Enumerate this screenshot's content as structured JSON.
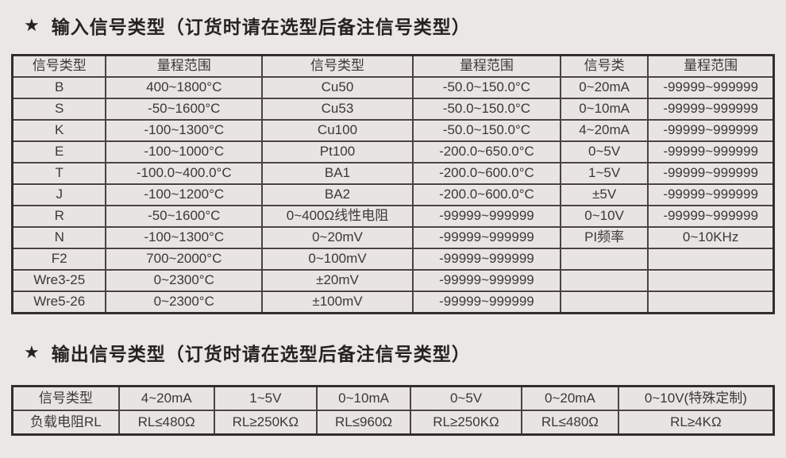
{
  "page": {
    "background_color": "#eae7e6",
    "cell_background_color": "#e7e4e3",
    "border_color": "#332d2d",
    "text_color": "#3d3737"
  },
  "section_input": {
    "star": "★",
    "title": "输入信号类型（订货时请在选型后备注信号类型）",
    "table": {
      "headers": [
        "信号类型",
        "量程范围",
        "信号类型",
        "量程范围",
        "信号类",
        "量程范围"
      ],
      "rows": [
        [
          "B",
          "400~1800°C",
          "Cu50",
          "-50.0~150.0°C",
          "0~20mA",
          "-99999~999999"
        ],
        [
          "S",
          "-50~1600°C",
          "Cu53",
          "-50.0~150.0°C",
          "0~10mA",
          "-99999~999999"
        ],
        [
          "K",
          "-100~1300°C",
          "Cu100",
          "-50.0~150.0°C",
          "4~20mA",
          "-99999~999999"
        ],
        [
          "E",
          "-100~1000°C",
          "Pt100",
          "-200.0~650.0°C",
          "0~5V",
          "-99999~999999"
        ],
        [
          "T",
          "-100.0~400.0°C",
          "BA1",
          "-200.0~600.0°C",
          "1~5V",
          "-99999~999999"
        ],
        [
          "J",
          "-100~1200°C",
          "BA2",
          "-200.0~600.0°C",
          "±5V",
          "-99999~999999"
        ],
        [
          "R",
          "-50~1600°C",
          "0~400Ω线性电阻",
          "-99999~999999",
          "0~10V",
          "-99999~999999"
        ],
        [
          "N",
          "-100~1300°C",
          "0~20mV",
          "-99999~999999",
          "PI频率",
          "0~10KHz"
        ],
        [
          "F2",
          "700~2000°C",
          "0~100mV",
          "-99999~999999",
          "",
          ""
        ],
        [
          "Wre3-25",
          "0~2300°C",
          "±20mV",
          "-99999~999999",
          "",
          ""
        ],
        [
          "Wre5-26",
          "0~2300°C",
          "±100mV",
          "-99999~999999",
          "",
          ""
        ]
      ]
    }
  },
  "section_output": {
    "star": "★",
    "title": "输出信号类型（订货时请在选型后备注信号类型）",
    "table": {
      "headers": [
        "信号类型",
        "4~20mA",
        "1~5V",
        "0~10mA",
        "0~5V",
        "0~20mA",
        "0~10V(特殊定制)"
      ],
      "rows": [
        [
          "负载电阻RL",
          "RL≤480Ω",
          "RL≥250KΩ",
          "RL≤960Ω",
          "RL≥250KΩ",
          "RL≤480Ω",
          "RL≥4KΩ"
        ]
      ]
    }
  }
}
